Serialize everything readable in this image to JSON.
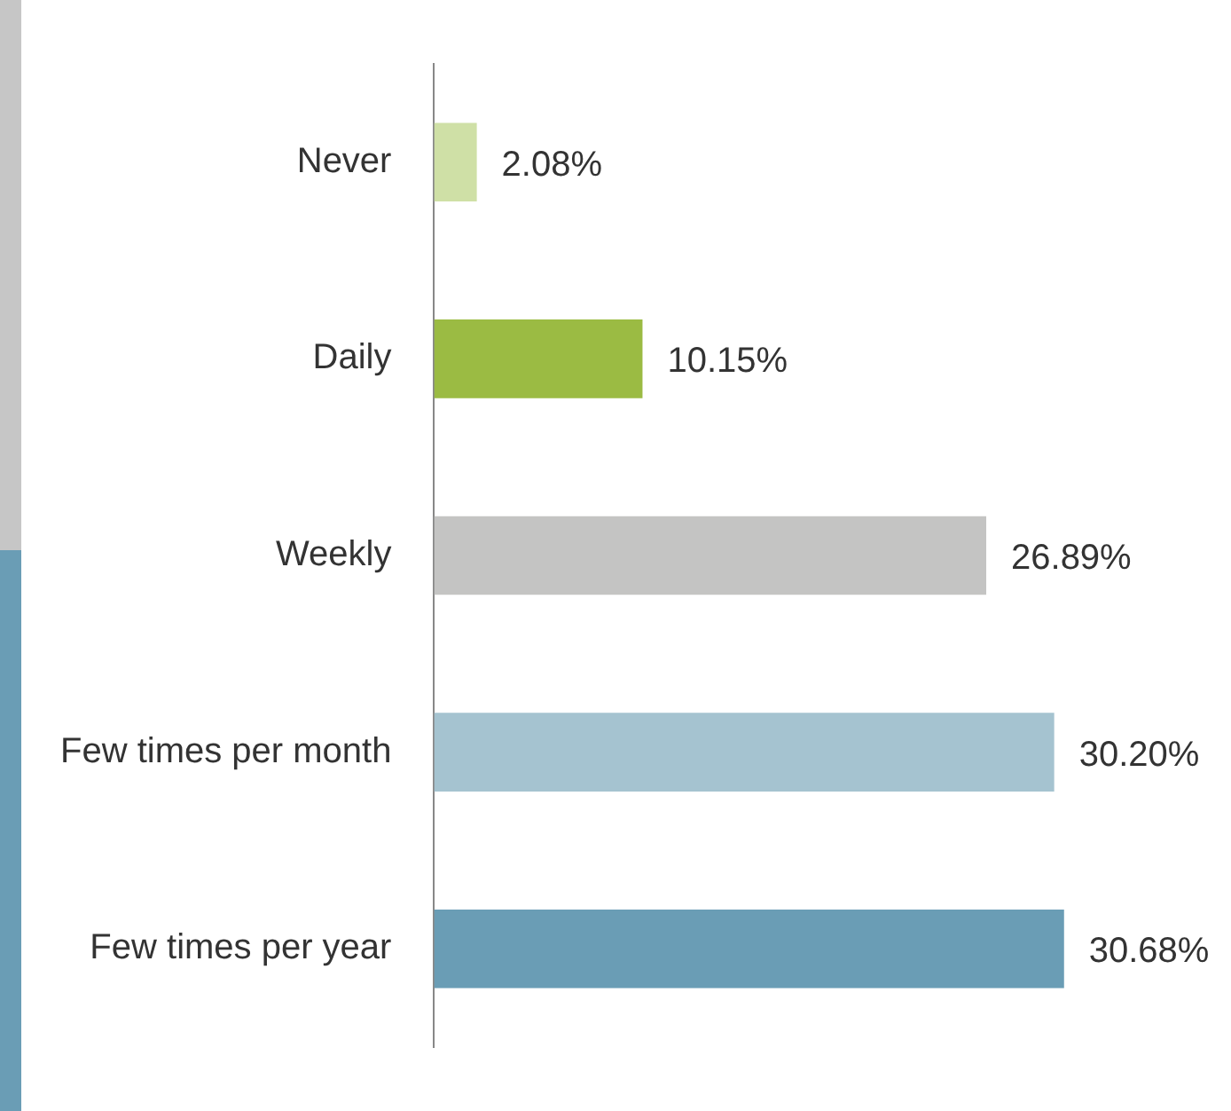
{
  "chart_data": {
    "type": "bar",
    "orientation": "horizontal",
    "categories": [
      "Never",
      "Daily",
      "Weekly",
      "Few times per month",
      "Few times per year"
    ],
    "values": [
      2.08,
      10.15,
      26.89,
      30.2,
      30.68
    ],
    "colors": [
      "#cfe0a6",
      "#9bbb43",
      "#c4c4c3",
      "#a5c3d0",
      "#6a9db5"
    ],
    "value_labels": [
      "2.08%",
      "10.15%",
      "26.89%",
      "30.20%",
      "30.68%"
    ],
    "grid": false,
    "legend": false
  }
}
